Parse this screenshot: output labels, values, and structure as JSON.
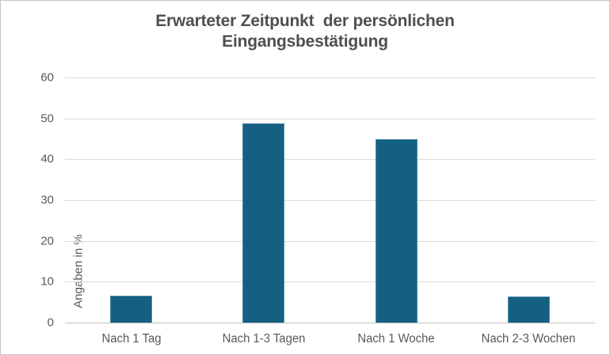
{
  "window": {
    "background": "#ffffff",
    "border_color": "#c6c6c6"
  },
  "chart_data": {
    "type": "bar",
    "title": "Erwarteter Zeitpunkt  der persönlichen Eingangsbestätigung",
    "title_lines": [
      "Erwarteter Zeitpunkt  der persönlichen",
      "Eingangsbestätigung"
    ],
    "xlabel": "",
    "ylabel": "Angaben in %",
    "categories": [
      "Nach 1 Tag",
      "Nach 1-3 Tagen",
      "Nach 1 Woche",
      "Nach 2-3 Wochen"
    ],
    "values": [
      6.5,
      48.7,
      45.0,
      6.4
    ],
    "ylim": [
      0,
      60
    ],
    "yticks": [
      0,
      10,
      20,
      30,
      40,
      50,
      60
    ],
    "grid": true,
    "legend": "none",
    "colors": {
      "bar_fill": "#156082",
      "bar_border": "#4e8aa8",
      "gridline": "#d9d9d9",
      "axis_line": "#bfbfbf",
      "title_text": "#4f4f4f",
      "axis_text": "#595959"
    }
  }
}
